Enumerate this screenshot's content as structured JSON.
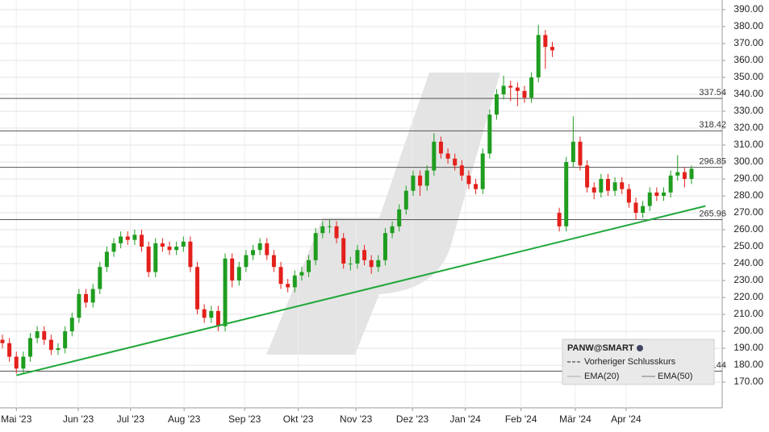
{
  "chart_data": {
    "type": "candlestick",
    "categories": [
      null,
      null,
      null,
      null,
      null,
      null,
      null,
      null,
      null,
      null,
      null,
      null,
      null,
      null,
      null,
      null,
      null,
      null,
      null,
      null,
      null,
      null,
      null,
      null,
      null,
      null,
      null,
      null,
      null,
      null,
      null,
      null,
      null,
      null,
      null,
      null,
      null,
      null,
      null,
      null,
      null,
      null,
      null,
      null,
      null,
      null,
      null,
      null,
      null,
      null,
      null,
      null,
      null,
      null,
      null,
      null,
      null,
      null,
      null,
      null,
      null,
      null,
      null,
      null,
      null,
      null,
      null,
      null,
      null,
      null,
      null,
      null,
      null,
      null,
      null,
      null,
      null,
      null,
      null,
      null,
      null,
      null,
      null,
      null,
      null,
      null,
      null,
      null,
      null,
      null,
      null,
      null,
      null,
      null,
      null,
      null,
      null,
      null,
      null,
      null
    ],
    "open": [
      195,
      193,
      185,
      178,
      185,
      196,
      200,
      195,
      189,
      190,
      200,
      208,
      222,
      217,
      225,
      238,
      247,
      252,
      256,
      254,
      257,
      250,
      235,
      252,
      250,
      248,
      250,
      253,
      238,
      213,
      208,
      212,
      203,
      243,
      230,
      238,
      245,
      248,
      252,
      245,
      238,
      228,
      226,
      233,
      235,
      242,
      258,
      262,
      262,
      255,
      240,
      240,
      248,
      242,
      238,
      242,
      258,
      262,
      272,
      283,
      292,
      286,
      295,
      312,
      305,
      302,
      298,
      292,
      287,
      284,
      305,
      328,
      340,
      345,
      344,
      342,
      338,
      350,
      375,
      368,
      270,
      262,
      300,
      312,
      298,
      285,
      282,
      290,
      283,
      288,
      284,
      276,
      270,
      274,
      282,
      280,
      282,
      292,
      294,
      290
    ],
    "high": [
      198,
      196,
      188,
      188,
      199,
      203,
      203,
      198,
      193,
      203,
      211,
      225,
      225,
      228,
      241,
      250,
      255,
      259,
      259,
      260,
      260,
      253,
      255,
      255,
      253,
      253,
      256,
      256,
      241,
      216,
      215,
      215,
      246,
      246,
      241,
      248,
      251,
      255,
      255,
      248,
      241,
      231,
      236,
      238,
      245,
      261,
      265,
      266,
      265,
      258,
      244,
      251,
      251,
      245,
      245,
      261,
      265,
      275,
      286,
      295,
      295,
      298,
      317,
      315,
      308,
      305,
      301,
      295,
      290,
      308,
      331,
      343,
      351,
      348,
      347,
      345,
      353,
      381,
      378,
      371,
      273,
      303,
      327,
      315,
      301,
      288,
      293,
      293,
      291,
      291,
      287,
      279,
      277,
      285,
      285,
      285,
      295,
      304,
      297,
      298
    ],
    "low": [
      190,
      182,
      175,
      175,
      182,
      193,
      192,
      186,
      186,
      187,
      197,
      205,
      214,
      214,
      222,
      235,
      244,
      249,
      251,
      251,
      247,
      232,
      232,
      247,
      245,
      245,
      247,
      235,
      210,
      205,
      205,
      200,
      200,
      226,
      227,
      235,
      242,
      245,
      242,
      235,
      225,
      223,
      223,
      230,
      232,
      239,
      255,
      258,
      252,
      237,
      236,
      237,
      239,
      234,
      235,
      239,
      255,
      259,
      269,
      280,
      280,
      283,
      292,
      302,
      299,
      295,
      289,
      284,
      281,
      281,
      302,
      325,
      337,
      336,
      333,
      335,
      335,
      347,
      355,
      362,
      259,
      259,
      297,
      295,
      282,
      278,
      279,
      280,
      280,
      281,
      273,
      266,
      267,
      271,
      277,
      277,
      279,
      289,
      285,
      287
    ],
    "close": [
      193,
      185,
      178,
      185,
      196,
      200,
      195,
      189,
      190,
      200,
      208,
      222,
      217,
      225,
      238,
      247,
      252,
      256,
      254,
      257,
      250,
      235,
      252,
      250,
      248,
      250,
      253,
      238,
      213,
      208,
      212,
      203,
      243,
      230,
      238,
      245,
      248,
      252,
      245,
      238,
      228,
      226,
      233,
      235,
      242,
      258,
      262,
      262,
      255,
      240,
      240,
      248,
      242,
      238,
      242,
      258,
      262,
      272,
      283,
      292,
      286,
      295,
      312,
      305,
      302,
      298,
      292,
      287,
      284,
      305,
      328,
      340,
      345,
      344,
      342,
      338,
      350,
      375,
      368,
      366,
      262,
      300,
      312,
      298,
      285,
      282,
      290,
      283,
      288,
      284,
      276,
      270,
      274,
      282,
      280,
      282,
      292,
      294,
      290,
      296
    ],
    "up_color": "#1f9d1f",
    "down_color": "#e3201b",
    "ylim": [
      154.8,
      395.7
    ],
    "yticks": [
      {
        "value": 170,
        "label": "170.00"
      },
      {
        "value": 180,
        "label": "180.00"
      },
      {
        "value": 190,
        "label": "190.00"
      },
      {
        "value": 200,
        "label": "200.00"
      },
      {
        "value": 210,
        "label": "210.00"
      },
      {
        "value": 220,
        "label": "220.00"
      },
      {
        "value": 230,
        "label": "230.00"
      },
      {
        "value": 240,
        "label": "240.00"
      },
      {
        "value": 250,
        "label": "250.00"
      },
      {
        "value": 260,
        "label": "260.00"
      },
      {
        "value": 270,
        "label": "270.00"
      },
      {
        "value": 280,
        "label": "280.00"
      },
      {
        "value": 290,
        "label": "290.00"
      },
      {
        "value": 300,
        "label": "300.00"
      },
      {
        "value": 310,
        "label": "310.00"
      },
      {
        "value": 320,
        "label": "320.00"
      },
      {
        "value": 330,
        "label": "330.00"
      },
      {
        "value": 340,
        "label": "340.00"
      },
      {
        "value": 350,
        "label": "350.00"
      },
      {
        "value": 360,
        "label": "360.00"
      },
      {
        "value": 370,
        "label": "370.00"
      },
      {
        "value": 380,
        "label": "380.00"
      },
      {
        "value": 390,
        "label": "390.00"
      }
    ],
    "xticks": [
      {
        "value": 2,
        "label": "Mai '23"
      },
      {
        "value": 10.9,
        "label": "Jun '23"
      },
      {
        "value": 18.4,
        "label": "Jul '23"
      },
      {
        "value": 26.1,
        "label": "Aug '23"
      },
      {
        "value": 34.8,
        "label": "Sep '23"
      },
      {
        "value": 42.5,
        "label": "Okt '23"
      },
      {
        "value": 50.8,
        "label": "Nov '23"
      },
      {
        "value": 58.9,
        "label": "Dez '23"
      },
      {
        "value": 66.5,
        "label": "Jan '24"
      },
      {
        "value": 74.5,
        "label": "Feb '24"
      },
      {
        "value": 82.3,
        "label": "Mär '24"
      },
      {
        "value": 89.6,
        "label": "Apr '24"
      }
    ],
    "grid": true,
    "levels": [
      337.54,
      318.42,
      296.85,
      265.96,
      176.44
    ],
    "level_color": "#555555",
    "trendline": {
      "color": "#1fa83a",
      "x": [
        2,
        101
      ],
      "y": [
        174,
        274
      ]
    },
    "legend": {
      "symbol": "PANW@SMART",
      "items": [
        "Vorheriger Schlusskurs",
        "EMA(20)",
        "EMA(50)"
      ]
    }
  }
}
